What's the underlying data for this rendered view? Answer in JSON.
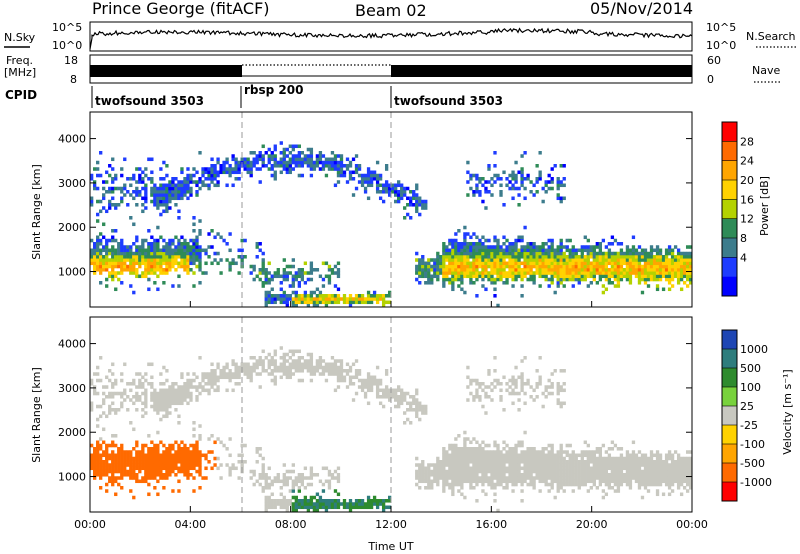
{
  "header": {
    "station": "Prince George (fitACF)",
    "beam": "Beam 02",
    "date": "05/Nov/2014"
  },
  "top_panels": {
    "nsky_label": "N.Sky",
    "nsky_ticks": [
      "10^5",
      "10^0"
    ],
    "nsearch_label": "N.Search",
    "nsearch_ticks": [
      "10^5",
      "10^0"
    ],
    "freq_label_1": "Freq.",
    "freq_label_2": "[MHz]",
    "freq_ticks": [
      "18",
      "8"
    ],
    "nave_label": "Nave",
    "nave_ticks": [
      "60",
      "0"
    ],
    "cpid_label": "CPID",
    "cpid_segments": [
      {
        "name": "twofsound 3503",
        "start_ut": 0,
        "end_ut": 6
      },
      {
        "name": "rbsp 200",
        "start_ut": 6,
        "end_ut": 12
      },
      {
        "name": "twofsound 3503",
        "start_ut": 12,
        "end_ut": 24
      }
    ]
  },
  "chart_data": [
    {
      "type": "heatmap",
      "name": "power",
      "ylabel": "Slant Range [km]",
      "xlabel": "Time UT",
      "xlim": [
        0,
        24
      ],
      "ylim": [
        200,
        4600
      ],
      "y_ticks": [
        "1000",
        "2000",
        "3000",
        "4000"
      ],
      "x_ticks": [
        "00:00",
        "04:00",
        "08:00",
        "12:00",
        "16:00",
        "20:00",
        "00:00"
      ],
      "colorbar_label": "Power [dB]",
      "colorbar_ticks": [
        "28",
        "24",
        "20",
        "16",
        "12",
        "8",
        "4"
      ],
      "colorbar_colors": [
        "#ff0000",
        "#ff6a00",
        "#ffa500",
        "#ffd200",
        "#b4d200",
        "#2e8b57",
        "#3c7c8c",
        "#1e3cff",
        "#0000ff"
      ]
    },
    {
      "type": "heatmap",
      "name": "velocity",
      "ylabel": "Slant Range [km]",
      "xlabel": "Time UT",
      "xlim": [
        0,
        24
      ],
      "ylim": [
        200,
        4600
      ],
      "y_ticks": [
        "1000",
        "2000",
        "3000",
        "4000"
      ],
      "x_ticks": [
        "00:00",
        "04:00",
        "08:00",
        "12:00",
        "16:00",
        "20:00",
        "00:00"
      ],
      "colorbar_label": "Velocity [m s⁻¹]",
      "colorbar_ticks": [
        "1000",
        "500",
        "100",
        "25",
        "-25",
        "-100",
        "-500",
        "-1000"
      ],
      "colorbar_colors": [
        "#1e46b4",
        "#2e7d7d",
        "#2e8b2e",
        "#78d23c",
        "#c8c8c0",
        "#ffd200",
        "#ffa500",
        "#ff6a00",
        "#ff0000"
      ]
    }
  ]
}
